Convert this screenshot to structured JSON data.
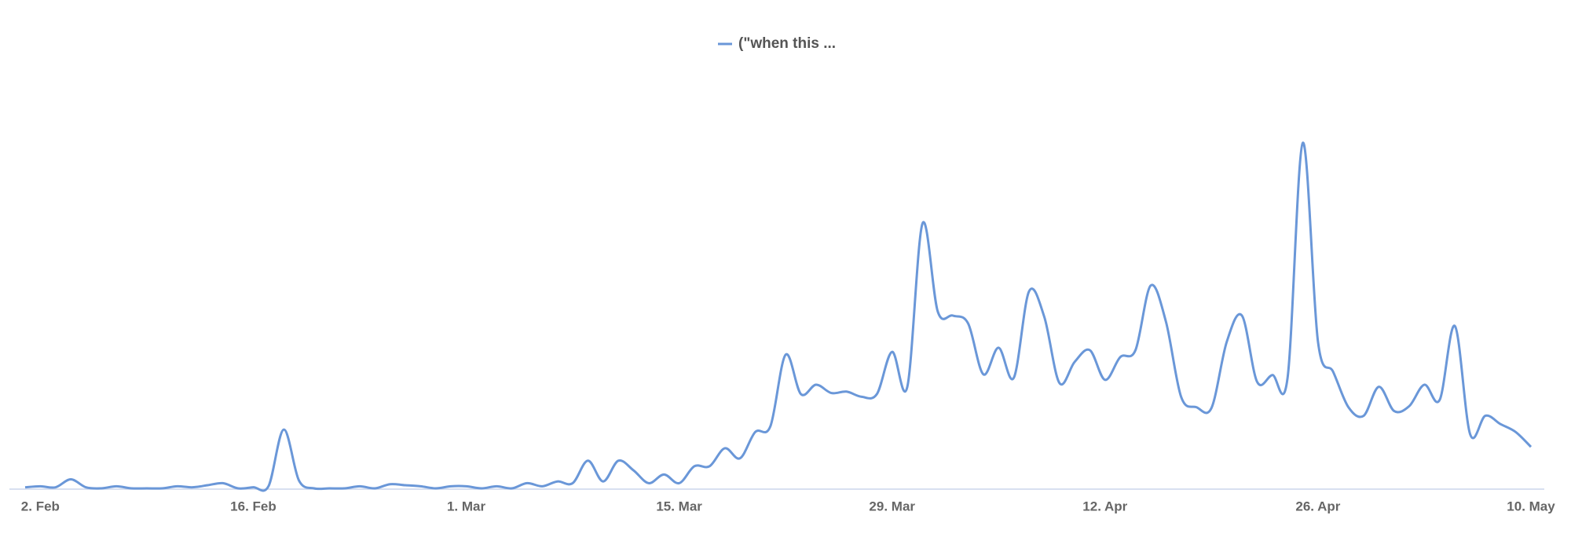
{
  "chart_data": {
    "type": "line",
    "legend": "top",
    "categories": [
      null,
      "2. Feb",
      null,
      null,
      null,
      null,
      null,
      null,
      null,
      null,
      null,
      null,
      null,
      null,
      null,
      "16. Feb",
      null,
      null,
      null,
      null,
      null,
      null,
      null,
      null,
      null,
      null,
      null,
      null,
      null,
      "1. Mar",
      null,
      null,
      null,
      null,
      null,
      null,
      null,
      null,
      null,
      null,
      null,
      null,
      null,
      "15. Mar",
      null,
      null,
      null,
      null,
      null,
      null,
      null,
      null,
      null,
      null,
      null,
      null,
      null,
      "29. Mar",
      null,
      null,
      null,
      null,
      null,
      null,
      null,
      null,
      null,
      null,
      null,
      null,
      null,
      "12. Apr",
      null,
      null,
      null,
      null,
      null,
      null,
      null,
      null,
      null,
      null,
      null,
      null,
      null,
      "26. Apr",
      null,
      null,
      null,
      null,
      null,
      null,
      null,
      null,
      null,
      null,
      null,
      null,
      null,
      "10. May"
    ],
    "series": [
      {
        "name": "(\"when this ...",
        "color": "#6a97d8",
        "values": [
          0.3,
          0.6,
          0.3,
          2.6,
          0.3,
          0,
          0.6,
          0,
          0,
          0,
          0.6,
          0.3,
          0.9,
          1.5,
          0,
          0.3,
          0.6,
          17,
          2.3,
          0,
          0,
          0,
          0.6,
          0,
          1.2,
          0.9,
          0.6,
          0,
          0.6,
          0.6,
          0,
          0.6,
          0,
          1.5,
          0.6,
          2,
          1.5,
          8,
          2,
          8,
          5.2,
          1.5,
          4,
          1.5,
          6.4,
          6.4,
          11.6,
          8.7,
          16.3,
          18,
          38.7,
          27.3,
          30,
          27.6,
          28,
          26.5,
          27.3,
          39.5,
          29.4,
          76.7,
          51.2,
          50,
          47.7,
          33,
          40.7,
          32,
          57,
          49.7,
          30.5,
          36.6,
          40,
          31.4,
          38,
          40,
          58.7,
          48.3,
          26.5,
          23.5,
          23.3,
          42.4,
          50,
          30.8,
          32.8,
          32,
          100,
          42.4,
          33.7,
          23.5,
          21,
          29.4,
          22.4,
          23.8,
          30,
          25.6,
          47,
          15.7,
          21,
          18.6,
          16.3,
          12
        ]
      }
    ],
    "ylim": [
      0,
      100
    ]
  }
}
